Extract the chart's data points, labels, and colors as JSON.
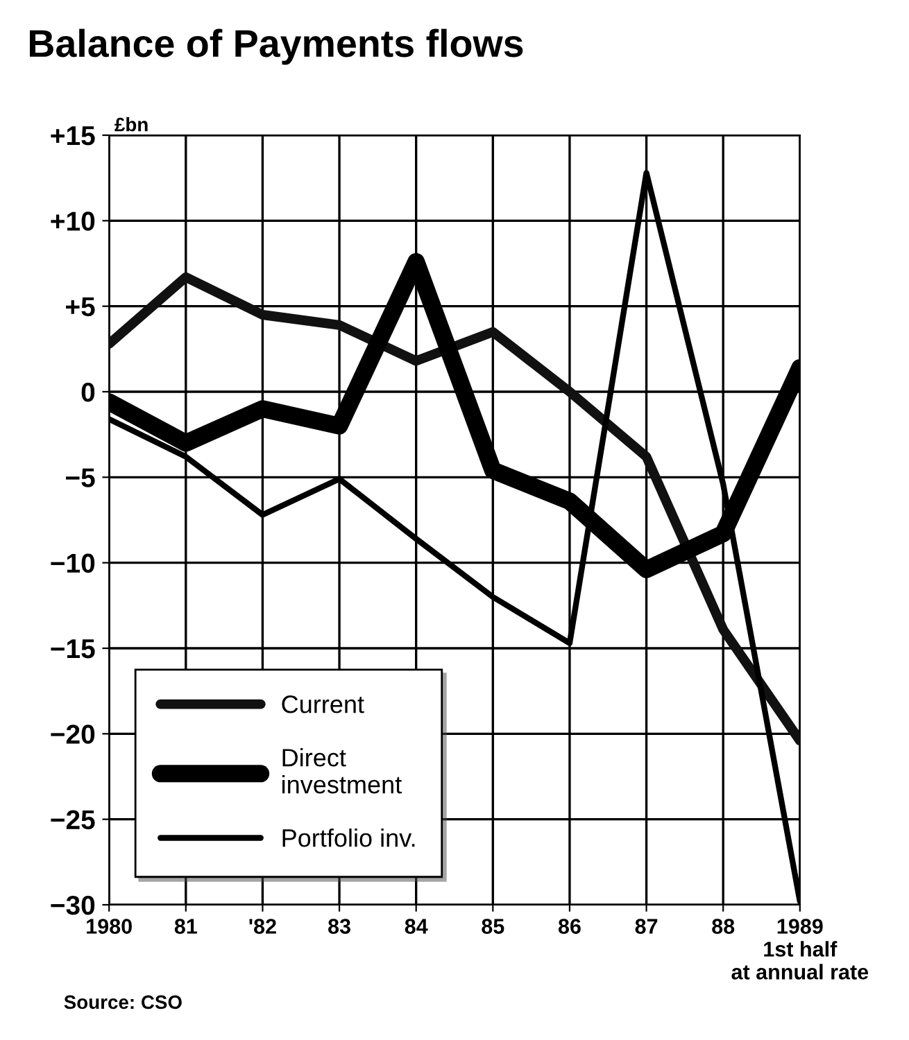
{
  "chart_data": {
    "type": "line",
    "title": "Balance of Payments flows",
    "ylabel": "£bn",
    "categories": [
      "1980",
      "81",
      "'82",
      "83",
      "84",
      "85",
      "86",
      "87",
      "88",
      "1989\n1st half\nat annual rate"
    ],
    "series": [
      {
        "name": "Current",
        "color": "#111111",
        "values": [
          2.8,
          6.7,
          4.5,
          3.9,
          1.8,
          3.5,
          0,
          -3.8,
          -13.9,
          -20.4
        ]
      },
      {
        "name": "Direct\ninvestment",
        "color": "#000000",
        "values": [
          -0.6,
          -3.0,
          -1.0,
          -2.0,
          7.6,
          -4.6,
          -6.4,
          -10.4,
          -8.3,
          1.4
        ]
      },
      {
        "name": "Portfolio inv.",
        "color": "#000000",
        "values": [
          -1.6,
          -3.8,
          -7.2,
          -5.1,
          -8.6,
          -12.0,
          -14.7,
          12.8,
          -5.4,
          -29.8
        ]
      }
    ],
    "ylim": [
      -30,
      15
    ],
    "yticks": [
      {
        "value": 15,
        "label": "+15"
      },
      {
        "value": 10,
        "label": "+10"
      },
      {
        "value": 5,
        "label": "+5"
      },
      0,
      {
        "value": -5,
        "label": "−5"
      },
      {
        "value": -10,
        "label": "−10"
      },
      {
        "value": -15,
        "label": "−15"
      },
      {
        "value": -20,
        "label": "−20"
      },
      {
        "value": -25,
        "label": "−25"
      },
      {
        "value": -30,
        "label": "−30"
      }
    ],
    "grid": true,
    "legend": "bottom left",
    "annotations": [
      "Source: CSO"
    ]
  }
}
